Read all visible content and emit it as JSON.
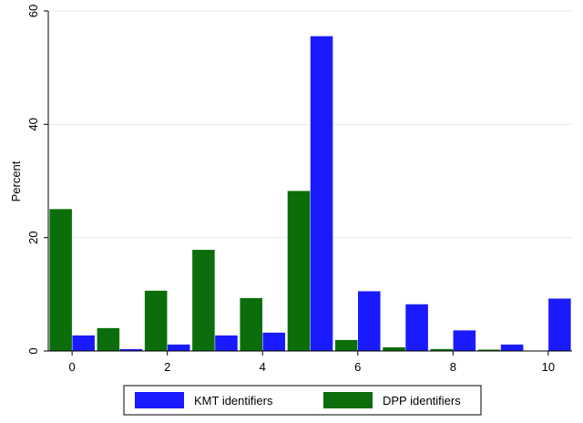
{
  "chart_data": {
    "type": "bar",
    "x": [
      0,
      1,
      2,
      3,
      4,
      5,
      6,
      7,
      8,
      9,
      10
    ],
    "series": [
      {
        "name": "KMT identifiers",
        "color": "#1a1aff",
        "values": [
          2.7,
          0.3,
          1.1,
          2.7,
          3.2,
          55.5,
          10.5,
          8.2,
          3.6,
          1.1,
          9.2
        ]
      },
      {
        "name": "DPP identifiers",
        "color": "#0b6e0b",
        "values": [
          25.0,
          4.0,
          10.6,
          17.8,
          9.3,
          28.2,
          1.9,
          0.6,
          0.3,
          0.2,
          null
        ]
      }
    ],
    "x_ticks": [
      "0",
      "2",
      "4",
      "6",
      "8",
      "10"
    ],
    "y_ticks": [
      "0",
      "20",
      "40",
      "60"
    ],
    "ylabel": "Percent",
    "xlabel": "",
    "ylim": [
      0,
      60
    ],
    "xlim": [
      -0.5,
      10.5
    ],
    "grid": true,
    "legend_position": "bottom"
  }
}
